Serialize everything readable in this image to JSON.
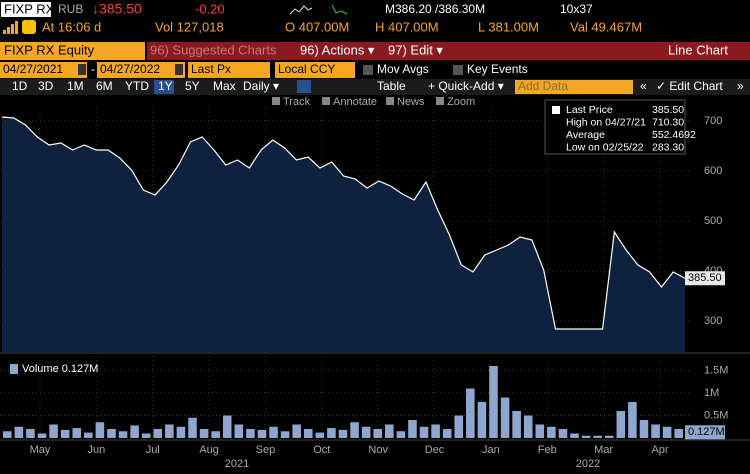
{
  "header": {
    "ticker": "FIXP RX",
    "currency": "RUB",
    "last": "↓385.50",
    "change": "-0.20",
    "bid_ask": "M386.20 /386.30M",
    "size": "10x37",
    "time": "At 16:06 d",
    "vol": "Vol 127,018",
    "open": "O 407.00M",
    "high": "H 407.00M",
    "low": "L 381.00M",
    "val": "Val 49.467M"
  },
  "menu": {
    "security": "FIXP RX Equity",
    "suggested": "96) Suggested Charts",
    "actions": "96) Actions ▾",
    "edit": "97) Edit ▾",
    "chart_type": "Line Chart"
  },
  "settings": {
    "start": "04/27/2021",
    "dash": "-",
    "end": "04/27/2022",
    "field": "Last Px",
    "ccy": "Local CCY",
    "mov_avgs": "Mov Avgs",
    "key_events": "Key Events"
  },
  "periods": [
    "1D",
    "3D",
    "1M",
    "6M",
    "YTD",
    "1Y",
    "5Y",
    "Max"
  ],
  "selected_period": 5,
  "toolbar": {
    "frequency": "Daily ▾",
    "table": "Table",
    "quick_add": "+ Quick-Add ▾",
    "add_data": "Add Data",
    "back": "«",
    "edit_chart": "✓ Edit Chart",
    "forward": "»"
  },
  "tools": [
    "Track",
    "Annotate",
    "News",
    "Zoom"
  ],
  "x_axis": {
    "months": [
      "May",
      "Jun",
      "Jul",
      "Aug",
      "Sep",
      "Oct",
      "Nov",
      "Dec",
      "Jan",
      "Feb",
      "Mar",
      "Apr"
    ],
    "years": [
      "2021",
      "2022"
    ]
  },
  "chart_data": [
    {
      "type": "line",
      "series": [
        {
          "name": "Last Price",
          "color": "#ffffff",
          "fill": "#0e2240",
          "values": [
            708,
            706,
            692,
            668,
            652,
            656,
            642,
            652,
            642,
            642,
            626,
            602,
            562,
            552,
            578,
            612,
            658,
            668,
            642,
            612,
            622,
            606,
            642,
            662,
            646,
            622,
            628,
            606,
            618,
            590,
            584,
            566,
            580,
            570,
            554,
            542,
            578,
            522,
            472,
            412,
            398,
            432,
            442,
            452,
            468,
            462,
            402,
            284,
            284,
            284,
            284,
            284,
            478,
            442,
            412,
            398,
            368,
            398,
            385.5
          ]
        }
      ],
      "ylim": [
        238,
        726
      ],
      "yticks": [
        300,
        400,
        500,
        600,
        700
      ],
      "grid": true,
      "legend": [
        {
          "label": "Last Price",
          "value": "385.50"
        },
        {
          "label": "High on 04/27/21",
          "value": "710.30"
        },
        {
          "label": "Average",
          "value": "552.4692"
        },
        {
          "label": "Low on 02/25/22",
          "value": "283.30"
        }
      ],
      "last_value": 385.5,
      "last_label": "385.50"
    },
    {
      "type": "bar",
      "series": [
        {
          "name": "Volume 0.127M",
          "color": "#8fa6cf",
          "values": [
            0.15,
            0.25,
            0.2,
            0.1,
            0.3,
            0.18,
            0.22,
            0.12,
            0.35,
            0.2,
            0.15,
            0.28,
            0.1,
            0.2,
            0.3,
            0.25,
            0.45,
            0.2,
            0.15,
            0.5,
            0.3,
            0.2,
            0.18,
            0.25,
            0.15,
            0.3,
            0.2,
            0.12,
            0.22,
            0.18,
            0.35,
            0.25,
            0.2,
            0.3,
            0.15,
            0.4,
            0.25,
            0.3,
            0.2,
            0.5,
            1.1,
            0.8,
            1.6,
            0.9,
            0.6,
            0.5,
            0.3,
            0.25,
            0.2,
            0.1,
            0.05,
            0.05,
            0.05,
            0.6,
            0.8,
            0.4,
            0.3,
            0.25,
            0.2
          ]
        }
      ],
      "ylim": [
        0,
        1.8
      ],
      "yticks": [
        {
          "value": 0.5,
          "label": "0.5M"
        },
        {
          "value": 1,
          "label": "1M"
        },
        {
          "value": 1.5,
          "label": "1.5M"
        }
      ],
      "grid": true,
      "last_value": 0.127,
      "last_label": "0.127M"
    }
  ]
}
